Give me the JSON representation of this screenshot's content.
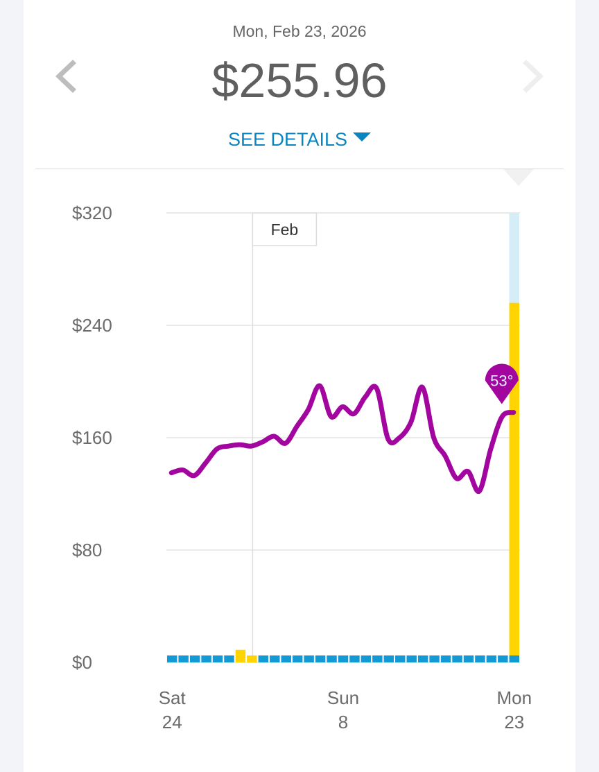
{
  "header": {
    "date": "Mon, Feb 23, 2026",
    "amount": "$255.96",
    "see_details": "SEE DETAILS"
  },
  "colors": {
    "accent": "#0a85c0",
    "cost_bar": "#ffd400",
    "cost_bar_light": "#d5edf6",
    "baseline_bar": "#1399d3",
    "temperature_line": "#a2069f"
  },
  "chart_data": {
    "type": "bar",
    "ylim": [
      0,
      320
    ],
    "y_ticks": [
      "$0",
      "$80",
      "$160",
      "$240",
      "$320"
    ],
    "y_tick_values": [
      0,
      80,
      160,
      240,
      320
    ],
    "x_ticks": [
      {
        "day": "Sat",
        "date": "24",
        "index": 0
      },
      {
        "day": "Sun",
        "date": "8",
        "index": 15
      },
      {
        "day": "Mon",
        "date": "23",
        "index": 30
      }
    ],
    "month_marker": {
      "label": "Feb",
      "index": 7.5
    },
    "days": 31,
    "series": [
      {
        "type": "bar",
        "values": [
          4,
          4,
          4,
          4,
          4,
          4,
          9,
          5,
          4,
          4,
          4,
          4,
          4,
          4,
          4,
          4,
          4,
          4,
          4,
          4,
          4,
          4,
          4,
          4,
          4,
          4,
          4,
          4,
          4,
          4,
          255.96
        ],
        "background_value": 320
      },
      {
        "type": "line",
        "unit": "°",
        "values": [
          135,
          137,
          133,
          142,
          152,
          154,
          155,
          154,
          157,
          161,
          156,
          168,
          180,
          197,
          175,
          182,
          177,
          189,
          195,
          159,
          160,
          171,
          196,
          160,
          147,
          131,
          136,
          122,
          152,
          175,
          178
        ],
        "current_label": "53°"
      }
    ]
  }
}
